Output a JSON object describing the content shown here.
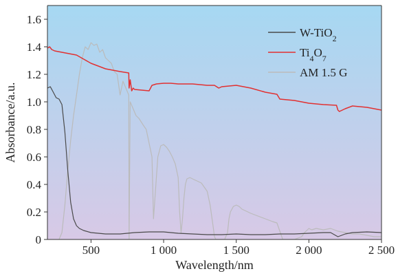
{
  "chart_data": {
    "type": "line",
    "xlabel": "Wavelength/nm",
    "ylabel": "Absorbance/a.u.",
    "xlim": [
      200,
      2500
    ],
    "ylim": [
      0,
      1.7
    ],
    "x_ticks": [
      500,
      1000,
      1500,
      2000,
      2500
    ],
    "x_tick_labels": [
      "500",
      "1 000",
      "1 500",
      "2 000",
      "2 500"
    ],
    "y_ticks": [
      0,
      0.2,
      0.4,
      0.6,
      0.8,
      1.0,
      1.2,
      1.4,
      1.6
    ],
    "y_tick_labels": [
      "0",
      "0.2",
      "0.4",
      "0.6",
      "0.8",
      "1.0",
      "1.2",
      "1.4",
      "1.6"
    ],
    "background_gradient": [
      "#a6d8f2",
      "#d8c9e6"
    ],
    "legend_position": "top-right",
    "series": [
      {
        "name": "W-TiO2",
        "legend_label": "W-TiO",
        "legend_sub": "2",
        "color": "#4a4a4a",
        "x": [
          200,
          220,
          240,
          260,
          280,
          300,
          320,
          340,
          360,
          380,
          400,
          420,
          450,
          500,
          600,
          700,
          800,
          900,
          1000,
          1100,
          1200,
          1300,
          1400,
          1500,
          1600,
          1700,
          1800,
          1900,
          2000,
          2100,
          2150,
          2200,
          2250,
          2300,
          2400,
          2500
        ],
        "y": [
          1.1,
          1.11,
          1.07,
          1.03,
          1.02,
          0.98,
          0.78,
          0.5,
          0.27,
          0.15,
          0.1,
          0.08,
          0.065,
          0.05,
          0.04,
          0.04,
          0.05,
          0.055,
          0.055,
          0.045,
          0.04,
          0.035,
          0.035,
          0.04,
          0.035,
          0.035,
          0.04,
          0.04,
          0.045,
          0.05,
          0.05,
          0.02,
          0.04,
          0.05,
          0.055,
          0.05
        ]
      },
      {
        "name": "Ti4O7",
        "legend_label": "Ti",
        "legend_parts": [
          "Ti",
          "4",
          "O",
          "7"
        ],
        "color": "#e23030",
        "x": [
          200,
          215,
          230,
          250,
          300,
          350,
          400,
          450,
          500,
          550,
          600,
          650,
          700,
          760,
          762,
          770,
          780,
          790,
          800,
          850,
          900,
          920,
          950,
          1000,
          1050,
          1100,
          1200,
          1300,
          1350,
          1380,
          1400,
          1500,
          1600,
          1700,
          1780,
          1800,
          1900,
          2000,
          2100,
          2190,
          2200,
          2210,
          2250,
          2300,
          2400,
          2500
        ],
        "y": [
          1.39,
          1.4,
          1.38,
          1.37,
          1.36,
          1.35,
          1.34,
          1.31,
          1.28,
          1.26,
          1.24,
          1.23,
          1.22,
          1.21,
          1.1,
          1.16,
          1.08,
          1.1,
          1.09,
          1.085,
          1.08,
          1.12,
          1.13,
          1.135,
          1.135,
          1.13,
          1.13,
          1.12,
          1.12,
          1.1,
          1.11,
          1.12,
          1.1,
          1.07,
          1.055,
          1.02,
          1.01,
          0.99,
          0.98,
          0.975,
          0.94,
          0.93,
          0.95,
          0.97,
          0.96,
          0.94
        ]
      },
      {
        "name": "AM 1.5 G",
        "legend_label": "AM 1.5 G",
        "color": "#bbbbbb",
        "x": [
          280,
          300,
          320,
          340,
          360,
          380,
          400,
          420,
          440,
          460,
          480,
          500,
          520,
          540,
          560,
          580,
          600,
          620,
          640,
          660,
          680,
          700,
          720,
          740,
          760,
          762,
          770,
          790,
          810,
          830,
          860,
          880,
          900,
          920,
          930,
          940,
          950,
          960,
          980,
          1000,
          1020,
          1040,
          1060,
          1080,
          1100,
          1110,
          1120,
          1130,
          1140,
          1150,
          1160,
          1180,
          1200,
          1220,
          1240,
          1260,
          1280,
          1300,
          1320,
          1340,
          1350,
          1360,
          1380,
          1400,
          1420,
          1440,
          1450,
          1460,
          1480,
          1500,
          1520,
          1540,
          1560,
          1600,
          1650,
          1700,
          1750,
          1780,
          1800,
          1820,
          1850,
          1900,
          1950,
          1970,
          2000,
          2020,
          2050,
          2100,
          2150,
          2200,
          2250,
          2300,
          2350,
          2400,
          2450,
          2500
        ],
        "y": [
          0,
          0.05,
          0.25,
          0.5,
          0.72,
          0.9,
          1.05,
          1.2,
          1.32,
          1.4,
          1.38,
          1.43,
          1.41,
          1.42,
          1.36,
          1.38,
          1.32,
          1.3,
          1.28,
          1.22,
          1.2,
          1.05,
          1.15,
          1.1,
          1.05,
          0.0,
          1.0,
          0.95,
          0.9,
          0.88,
          0.83,
          0.8,
          0.7,
          0.6,
          0.15,
          0.3,
          0.45,
          0.6,
          0.68,
          0.69,
          0.67,
          0.64,
          0.6,
          0.55,
          0.45,
          0.2,
          0.05,
          0.15,
          0.3,
          0.4,
          0.44,
          0.45,
          0.44,
          0.43,
          0.42,
          0.41,
          0.38,
          0.35,
          0.25,
          0.1,
          0.02,
          0.0,
          0.0,
          0.0,
          0.0,
          0.05,
          0.15,
          0.2,
          0.24,
          0.25,
          0.24,
          0.22,
          0.21,
          0.19,
          0.17,
          0.15,
          0.13,
          0.12,
          0.06,
          0.0,
          0.0,
          0.0,
          0.02,
          0.05,
          0.08,
          0.07,
          0.08,
          0.07,
          0.08,
          0.06,
          0.05,
          0.04,
          0.04,
          0.03,
          0.02,
          0.02
        ]
      }
    ]
  }
}
